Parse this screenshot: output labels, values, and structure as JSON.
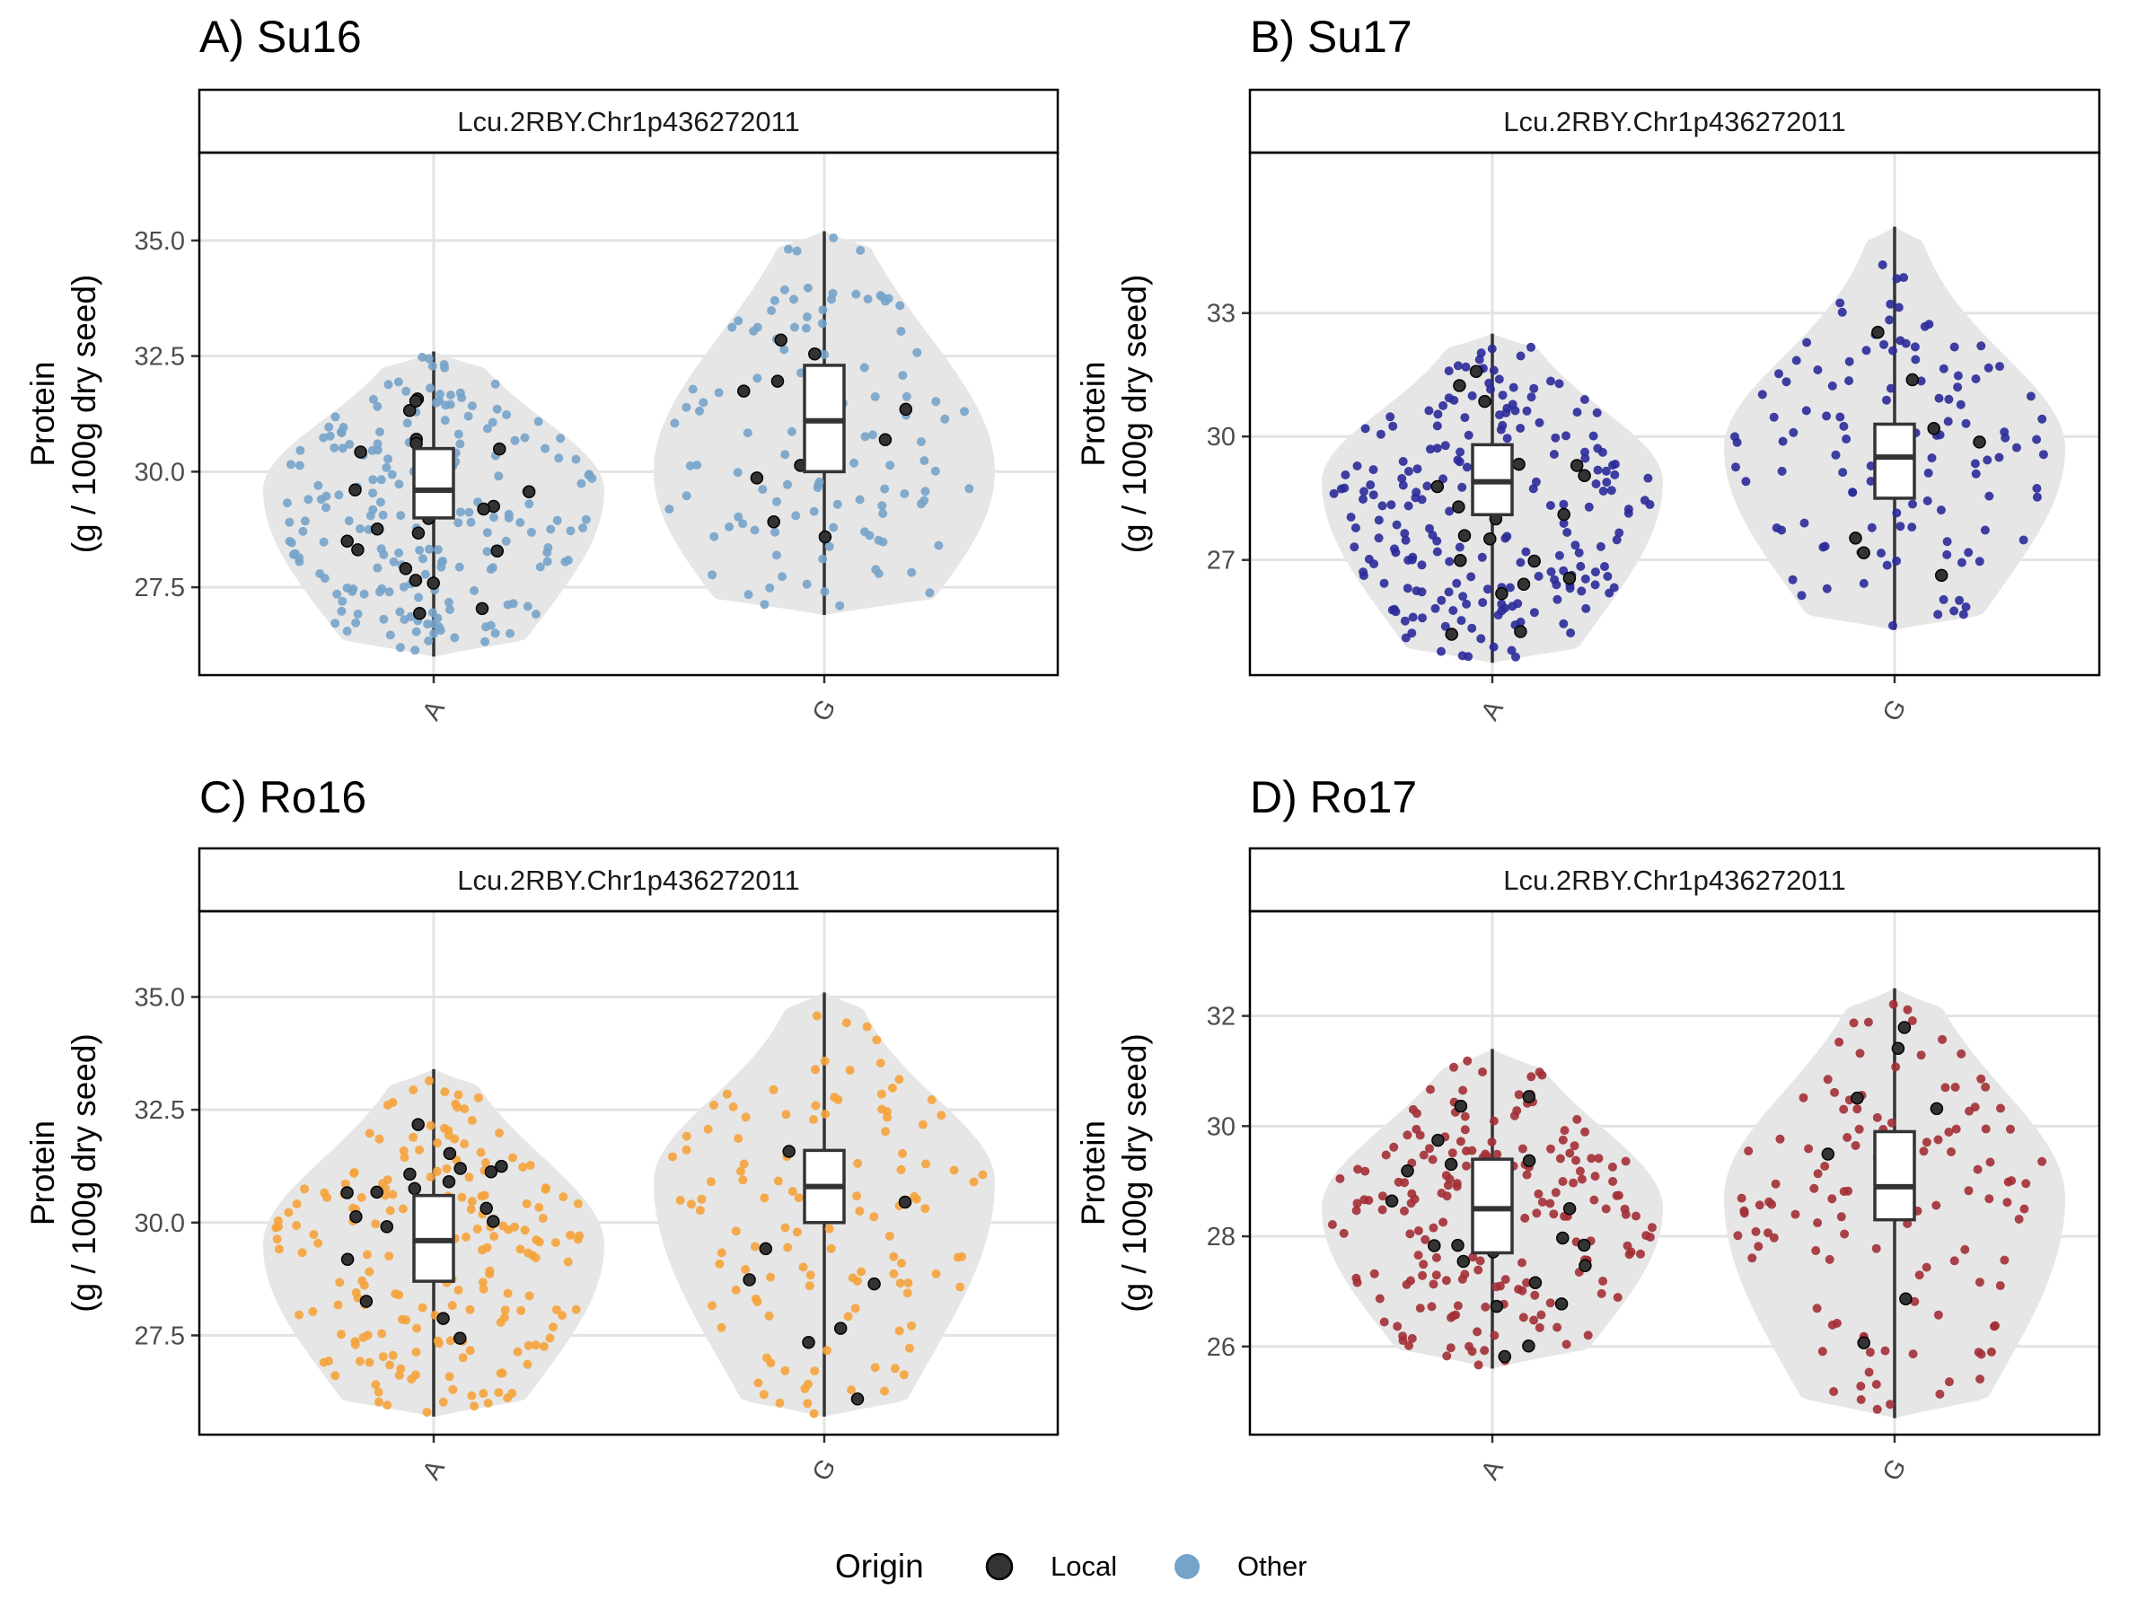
{
  "chart_data": [
    {
      "type": "violin",
      "title": "A) Su16",
      "facet_label": "Lcu.2RBY.Chr1p436272011",
      "ylabel_line1": "Protein",
      "ylabel_line2": "(g / 100g dry seed)",
      "categories": [
        "A",
        "G"
      ],
      "color": "#75a3c9",
      "ylim": [
        25.6,
        36.9
      ],
      "yticks": [
        27.5,
        30.0,
        32.5,
        35.0
      ],
      "ytick_labels": [
        "27.5",
        "30.0",
        "32.5",
        "35.0"
      ],
      "groups": [
        {
          "category": "A",
          "min": 26.0,
          "q1": 29.0,
          "median": 29.6,
          "q3": 30.5,
          "max": 32.6,
          "mode": 29.6,
          "n_other": 200,
          "n_local": 22
        },
        {
          "category": "G",
          "min": 26.9,
          "q1": 30.0,
          "median": 31.1,
          "q3": 32.3,
          "max": 35.2,
          "mode": 30.0,
          "n_other": 110,
          "n_local": 10
        }
      ],
      "grid": true
    },
    {
      "type": "violin",
      "title": "B) Su17",
      "facet_label": "Lcu.2RBY.Chr1p436272011",
      "ylabel_line1": "Protein",
      "ylabel_line2": "(g / 100g dry seed)",
      "categories": [
        "A",
        "G"
      ],
      "color": "#2a2a9a",
      "ylim": [
        24.2,
        36.9
      ],
      "yticks": [
        27,
        30,
        33
      ],
      "ytick_labels": [
        "27",
        "30",
        "33"
      ],
      "groups": [
        {
          "category": "A",
          "min": 24.5,
          "q1": 28.1,
          "median": 28.9,
          "q3": 29.8,
          "max": 32.5,
          "mode": 28.9,
          "n_other": 210,
          "n_local": 22
        },
        {
          "category": "G",
          "min": 25.3,
          "q1": 28.5,
          "median": 29.5,
          "q3": 30.3,
          "max": 35.1,
          "mode": 29.7,
          "n_other": 120,
          "n_local": 8
        }
      ],
      "grid": true
    },
    {
      "type": "violin",
      "title": "C) Ro16",
      "facet_label": "Lcu.2RBY.Chr1p436272011",
      "ylabel_line1": "Protein",
      "ylabel_line2": "(g / 100g dry seed)",
      "categories": [
        "A",
        "G"
      ],
      "color": "#f5a33b",
      "ylim": [
        25.3,
        36.9
      ],
      "yticks": [
        27.5,
        30.0,
        32.5,
        35.0
      ],
      "ytick_labels": [
        "27.5",
        "30.0",
        "32.5",
        "35.0"
      ],
      "groups": [
        {
          "category": "A",
          "min": 25.7,
          "q1": 28.7,
          "median": 29.6,
          "q3": 30.6,
          "max": 33.4,
          "mode": 29.5,
          "n_other": 200,
          "n_local": 18
        },
        {
          "category": "G",
          "min": 25.7,
          "q1": 30.0,
          "median": 30.8,
          "q3": 31.6,
          "max": 35.1,
          "mode": 30.9,
          "n_other": 120,
          "n_local": 8
        }
      ],
      "grid": true
    },
    {
      "type": "violin",
      "title": "D) Ro17",
      "facet_label": "Lcu.2RBY.Chr1p436272011",
      "ylabel_line1": "Protein",
      "ylabel_line2": "(g / 100g dry seed)",
      "categories": [
        "A",
        "G"
      ],
      "color": "#a32f35",
      "ylim": [
        24.4,
        33.9
      ],
      "yticks": [
        26,
        28,
        30,
        32
      ],
      "ytick_labels": [
        "26",
        "28",
        "30",
        "32"
      ],
      "groups": [
        {
          "category": "A",
          "min": 25.6,
          "q1": 27.7,
          "median": 28.5,
          "q3": 29.4,
          "max": 31.4,
          "mode": 28.5,
          "n_other": 200,
          "n_local": 20
        },
        {
          "category": "G",
          "min": 24.7,
          "q1": 28.3,
          "median": 28.9,
          "q3": 29.9,
          "max": 32.5,
          "mode": 28.7,
          "n_other": 120,
          "n_local": 8
        }
      ],
      "grid": true
    }
  ],
  "legend": {
    "title": "Origin",
    "position": "bottom",
    "items": [
      {
        "label": "Local",
        "color": "#333333"
      },
      {
        "label": "Other",
        "color": "#75a3c9"
      }
    ]
  }
}
